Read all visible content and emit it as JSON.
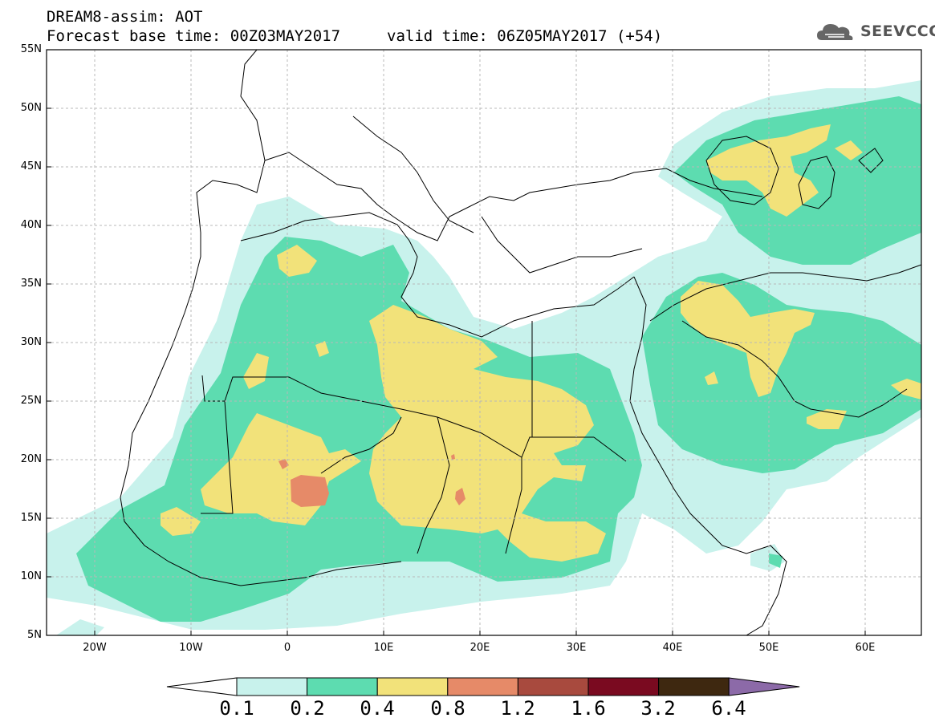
{
  "title": {
    "line1": "DREAM8-assim: AOT",
    "line2": "Forecast base time: 00Z03MAY2017",
    "valid": "valid time: 06Z05MAY2017 (+54)"
  },
  "logo": {
    "text": "SEEVCCC",
    "icon": "cloud-icon"
  },
  "axes": {
    "lat_labels": [
      "55N",
      "50N",
      "45N",
      "40N",
      "35N",
      "30N",
      "25N",
      "20N",
      "15N",
      "10N",
      "5N"
    ],
    "lon_labels": [
      "20W",
      "10W",
      "0",
      "10E",
      "20E",
      "30E",
      "40E",
      "50E",
      "60E"
    ],
    "lon_range": [
      -25,
      65
    ],
    "lat_range": [
      5,
      55
    ]
  },
  "colorbar": {
    "labels": [
      "0.1",
      "0.2",
      "0.4",
      "0.8",
      "1.2",
      "1.6",
      "3.2",
      "6.4"
    ],
    "colors": [
      "#ffffff",
      "#c8f2ec",
      "#5ddcb0",
      "#f2e27a",
      "#e68a68",
      "#a84a3e",
      "#7a0a20",
      "#3e2810",
      "#8c6aa8"
    ]
  }
}
